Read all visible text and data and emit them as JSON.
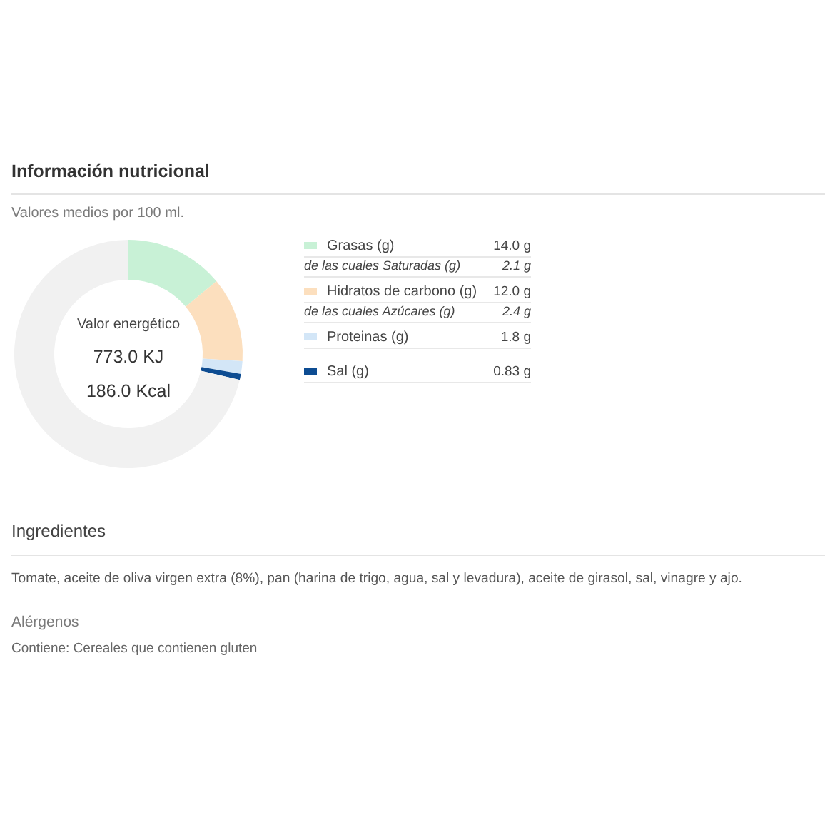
{
  "chart_data": {
    "type": "donut",
    "title": "Información nutricional",
    "subtitle": "Valores medios por 100 ml.",
    "categories": [
      "Grasas (g)",
      "Hidratos de carbono (g)",
      "Proteinas (g)",
      "Sal (g)",
      null
    ],
    "values": [
      14.0,
      12.0,
      1.8,
      0.83,
      71.37
    ],
    "colors": [
      "#c8f1d6",
      "#fcdfbe",
      "#d3e6f7",
      "#0d4c92",
      "#f1f1f1"
    ],
    "value_labels": [
      "14.0 g",
      "12.0 g",
      "1.8 g",
      "0.83 g",
      null
    ],
    "legend": "right",
    "annotations": [
      "Valor energético",
      "773.0 KJ",
      "186.0 Kcal",
      "de las cuales Saturadas (g)",
      "2.1 g",
      "de las cuales Azúcares (g)",
      "2.4 g",
      "Ingredientes",
      "Tomate, aceite de oliva virgen extra (8%), pan (harina de trigo, agua, sal y levadura), aceite de girasol, sal, vinagre y ajo.",
      "Alérgenos",
      "Contiene: Cereales que contienen gluten"
    ]
  }
}
